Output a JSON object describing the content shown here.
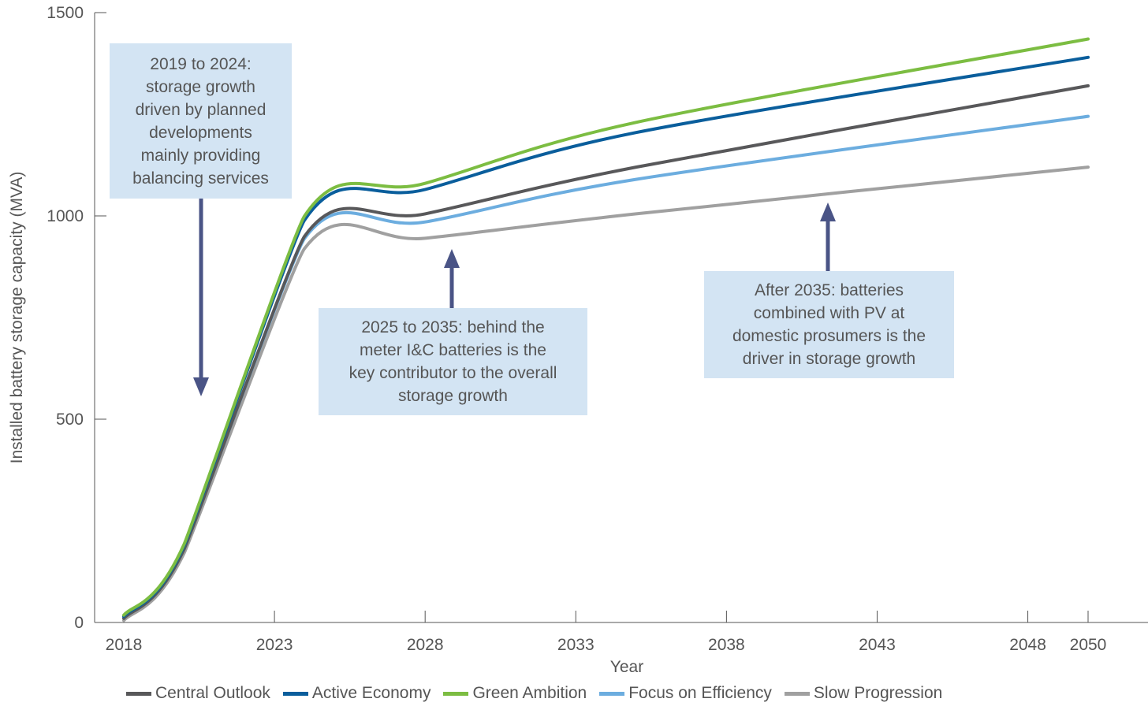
{
  "chart_data": {
    "type": "line",
    "xlabel": "Year",
    "ylabel": "Installed battery storage capacity (MVA)",
    "x": [
      2018,
      2020,
      2024,
      2028,
      2035,
      2050
    ],
    "xticks": [
      "2018",
      "2023",
      "2028",
      "2033",
      "2038",
      "2043",
      "2048",
      "2050"
    ],
    "yticks": [
      "0",
      "500",
      "1000",
      "1500"
    ],
    "xlim": [
      2018,
      2050
    ],
    "ylim": [
      0,
      1500
    ],
    "grid": false,
    "legend_position": "bottom",
    "series": [
      {
        "name": "Central Outlook",
        "color": "#58585a",
        "values": [
          10,
          180,
          950,
          1005,
          1120,
          1320
        ]
      },
      {
        "name": "Active Economy",
        "color": "#0a5e9c",
        "values": [
          15,
          188,
          990,
          1065,
          1205,
          1390
        ]
      },
      {
        "name": "Green Ambition",
        "color": "#7cbd42",
        "values": [
          18,
          192,
          1000,
          1080,
          1230,
          1435
        ]
      },
      {
        "name": "Focus on Efficiency",
        "color": "#6caddf",
        "values": [
          12,
          182,
          945,
          985,
          1090,
          1245
        ]
      },
      {
        "name": "Slow Progression",
        "color": "#a0a0a0",
        "values": [
          5,
          170,
          920,
          945,
          1005,
          1120
        ]
      }
    ],
    "annotations": [
      {
        "text": "2019 to 2024:\nstorage growth\ndriven by planned\ndevelopments\nmainly providing\nbalancing services",
        "arrow": "down"
      },
      {
        "text": "2025 to 2035: behind the\nmeter I&C batteries is the\nkey contributor to the overall\nstorage growth",
        "arrow": "up"
      },
      {
        "text": "After 2035: batteries\ncombined with PV at\ndomestic prosumers is the\ndriver in storage growth",
        "arrow": "up"
      }
    ],
    "arrow_color": "#4a5486"
  }
}
